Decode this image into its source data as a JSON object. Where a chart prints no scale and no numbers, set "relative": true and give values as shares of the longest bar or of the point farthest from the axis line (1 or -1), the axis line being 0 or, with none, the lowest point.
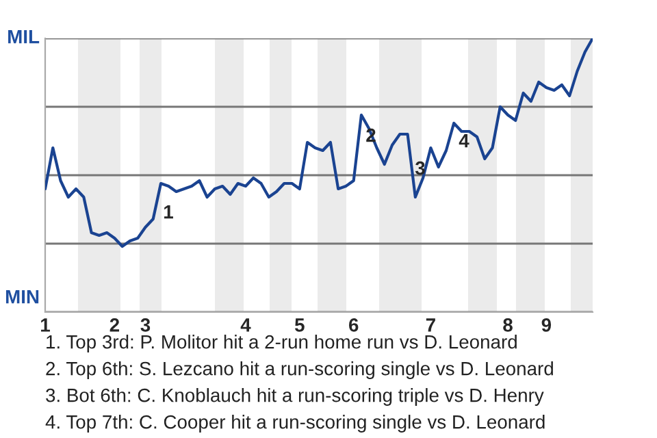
{
  "chart_data": {
    "type": "line",
    "legend": false,
    "grid": "y",
    "marker": "none",
    "line_style": "solid",
    "relative": true,
    "tick_labels": "x",
    "categories": [
      "1",
      null,
      null,
      null,
      null,
      null,
      null,
      null,
      null,
      "2",
      null,
      null,
      null,
      "3",
      null,
      null,
      null,
      null,
      null,
      null,
      null,
      null,
      null,
      null,
      null,
      null,
      "4",
      null,
      null,
      null,
      null,
      null,
      null,
      "5",
      null,
      null,
      null,
      null,
      null,
      null,
      "6",
      null,
      null,
      null,
      null,
      null,
      null,
      null,
      null,
      null,
      "7",
      null,
      null,
      null,
      null,
      null,
      null,
      null,
      null,
      null,
      "8",
      null,
      null,
      null,
      null,
      "9",
      null,
      null,
      null,
      null,
      null,
      null
    ],
    "series": [
      {
        "color": "#1a4391",
        "values": [
          0.45,
          0.6,
          0.48,
          0.42,
          0.45,
          0.42,
          0.29,
          0.28,
          0.29,
          0.27,
          0.24,
          0.26,
          0.27,
          0.31,
          0.34,
          0.47,
          0.46,
          0.44,
          0.45,
          0.46,
          0.48,
          0.42,
          0.45,
          0.46,
          0.43,
          0.47,
          0.46,
          0.49,
          0.47,
          0.42,
          0.44,
          0.47,
          0.47,
          0.45,
          0.62,
          0.6,
          0.59,
          0.62,
          0.45,
          0.46,
          0.48,
          0.72,
          0.67,
          0.6,
          0.54,
          0.61,
          0.65,
          0.65,
          0.42,
          0.49,
          0.6,
          0.53,
          0.59,
          0.69,
          0.66,
          0.66,
          0.64,
          0.56,
          0.6,
          0.75,
          0.72,
          0.7,
          0.8,
          0.77,
          0.84,
          0.82,
          0.81,
          0.83,
          0.79,
          0.88,
          0.95,
          1.0
        ]
      }
    ],
    "annotations": [
      "MIL",
      "MIN",
      "1",
      "2",
      "3",
      "4",
      "1. Top 3rd: P. Molitor hit a 2-run home run vs D. Leonard",
      "2. Top 6th: S. Lezcano hit a run-scoring single vs D. Leonard",
      "3. Bot 6th: C. Knoblauch hit a run-scoring triple vs D. Henry",
      "4. Top 7th: C. Cooper hit a run-scoring single vs D. Leonard"
    ]
  }
}
